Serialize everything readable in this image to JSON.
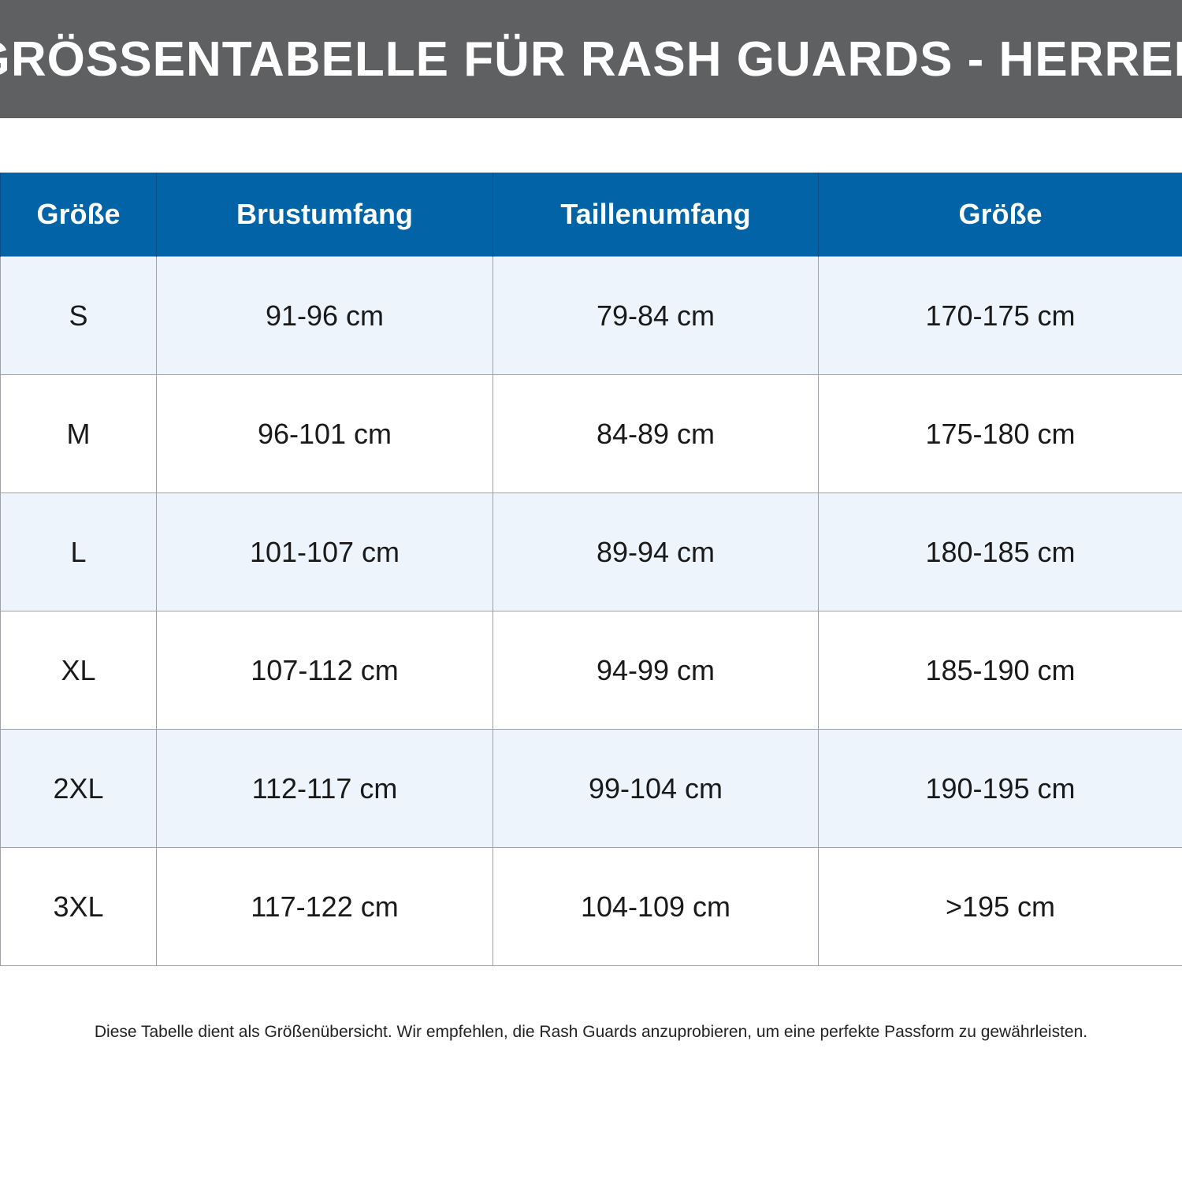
{
  "title": "GRÖSSENTABELLE FÜR RASH GUARDS - HERREN",
  "colors": {
    "title_bar": "#5f6062",
    "header": "#0263a6",
    "row_tint": "#eef4fb",
    "grid": "#9ea2a8"
  },
  "table": {
    "headers": [
      "Größe",
      "Brustumfang",
      "Taillenumfang",
      "Größe"
    ],
    "rows": [
      [
        "S",
        "91-96 cm",
        "79-84 cm",
        "170-175 cm"
      ],
      [
        "M",
        "96-101 cm",
        "84-89 cm",
        "175-180 cm"
      ],
      [
        "L",
        "101-107 cm",
        "89-94 cm",
        "180-185 cm"
      ],
      [
        "XL",
        "107-112 cm",
        "94-99 cm",
        "185-190 cm"
      ],
      [
        "2XL",
        "112-117 cm",
        "99-104 cm",
        "190-195 cm"
      ],
      [
        "3XL",
        "117-122 cm",
        "104-109 cm",
        ">195 cm"
      ]
    ]
  },
  "footnote": "Diese Tabelle dient als Größenübersicht. Wir empfehlen, die Rash Guards anzuprobieren, um eine perfekte Passform zu gewährleisten."
}
